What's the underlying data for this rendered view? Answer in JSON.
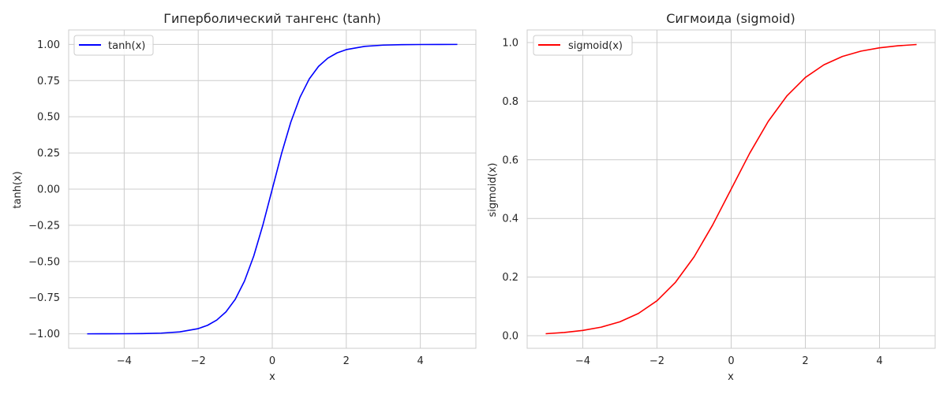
{
  "chart_data": [
    {
      "type": "line",
      "title": "Гиперболический тангенс (tanh)",
      "xlabel": "x",
      "ylabel": "tanh(x)",
      "xlim": [
        -5.5,
        5.5
      ],
      "ylim": [
        -1.1,
        1.1
      ],
      "xticks": [
        -4,
        -2,
        0,
        2,
        4
      ],
      "xtick_labels": [
        "−4",
        "−2",
        "0",
        "2",
        "4"
      ],
      "yticks": [
        -1.0,
        -0.75,
        -0.5,
        -0.25,
        0.0,
        0.25,
        0.5,
        0.75,
        1.0
      ],
      "ytick_labels": [
        "−1.00",
        "−0.75",
        "−0.50",
        "−0.25",
        "0.00",
        "0.25",
        "0.50",
        "0.75",
        "1.00"
      ],
      "grid": true,
      "legend_position": "top-left",
      "series": [
        {
          "name": "tanh(x)",
          "color": "#0000ff",
          "x": [
            -5,
            -4.5,
            -4,
            -3.5,
            -3,
            -2.5,
            -2,
            -1.75,
            -1.5,
            -1.25,
            -1,
            -0.75,
            -0.5,
            -0.25,
            0,
            0.25,
            0.5,
            0.75,
            1,
            1.25,
            1.5,
            1.75,
            2,
            2.5,
            3,
            3.5,
            4,
            4.5,
            5
          ],
          "y": [
            -0.9999,
            -0.9998,
            -0.9993,
            -0.9982,
            -0.9951,
            -0.9866,
            -0.964,
            -0.9414,
            -0.9051,
            -0.8483,
            -0.7616,
            -0.6351,
            -0.4621,
            -0.2449,
            0.0,
            0.2449,
            0.4621,
            0.6351,
            0.7616,
            0.8483,
            0.9051,
            0.9414,
            0.964,
            0.9866,
            0.9951,
            0.9982,
            0.9993,
            0.9998,
            0.9999
          ]
        }
      ]
    },
    {
      "type": "line",
      "title": "Сигмоида (sigmoid)",
      "xlabel": "x",
      "ylabel": "sigmoid(x)",
      "xlim": [
        -5.5,
        5.5
      ],
      "ylim": [
        -0.043,
        1.043
      ],
      "xticks": [
        -4,
        -2,
        0,
        2,
        4
      ],
      "xtick_labels": [
        "−4",
        "−2",
        "0",
        "2",
        "4"
      ],
      "yticks": [
        0.0,
        0.2,
        0.4,
        0.6,
        0.8,
        1.0
      ],
      "ytick_labels": [
        "0.0",
        "0.2",
        "0.4",
        "0.6",
        "0.8",
        "1.0"
      ],
      "grid": true,
      "legend_position": "top-left",
      "series": [
        {
          "name": "sigmoid(x)",
          "color": "#ff0000",
          "x": [
            -5,
            -4.5,
            -4,
            -3.5,
            -3,
            -2.5,
            -2,
            -1.5,
            -1,
            -0.5,
            0,
            0.5,
            1,
            1.5,
            2,
            2.5,
            3,
            3.5,
            4,
            4.5,
            5
          ],
          "y": [
            0.0067,
            0.011,
            0.018,
            0.0293,
            0.0474,
            0.0759,
            0.1192,
            0.1824,
            0.2689,
            0.3775,
            0.5,
            0.6225,
            0.7311,
            0.8176,
            0.8808,
            0.9241,
            0.9526,
            0.9707,
            0.982,
            0.989,
            0.9933
          ]
        }
      ]
    }
  ]
}
